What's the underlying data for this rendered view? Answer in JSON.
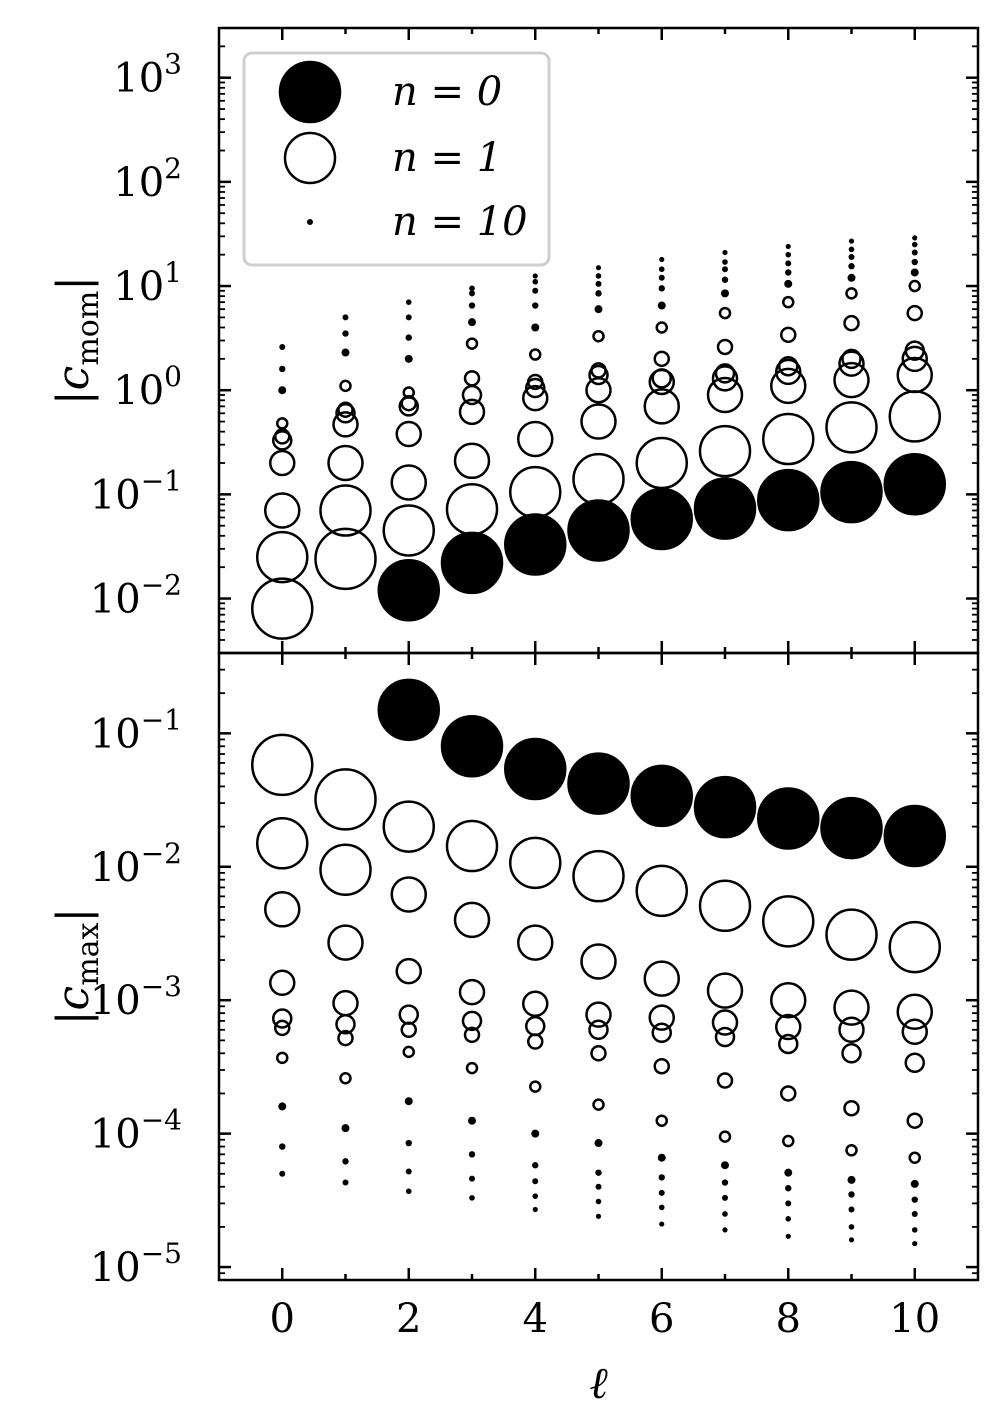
{
  "chart_data": [
    {
      "type": "scatter",
      "panel": "top",
      "ylabel_main": "c",
      "ylabel_sub": "mom",
      "yscale": "log",
      "ylim": [
        0.003,
        3000
      ],
      "xlim": [
        -1,
        11
      ],
      "ytick_base": "10",
      "yticks": [
        {
          "value": 0.01,
          "exp": "−2"
        },
        {
          "value": 0.1,
          "exp": "−1"
        },
        {
          "value": 1,
          "exp": "0"
        },
        {
          "value": 10,
          "exp": "1"
        },
        {
          "value": 100,
          "exp": "2"
        },
        {
          "value": 1000,
          "exp": "3"
        }
      ],
      "legend": {
        "position": "top-left",
        "entries": [
          {
            "label": "n = 0",
            "n": 0,
            "style": "filled"
          },
          {
            "label": "n = 1",
            "n": 1,
            "style": "open"
          },
          {
            "label": "n = 10",
            "n": 10,
            "style": "dot"
          }
        ]
      },
      "series": [
        {
          "x": 0,
          "values": [
            0.008,
            0.025,
            0.07,
            0.2,
            0.33,
            0.36,
            0.48,
            1.0,
            1.6,
            2.6
          ]
        },
        {
          "x": 1,
          "values": [
            0.024,
            0.07,
            0.2,
            0.47,
            0.6,
            0.65,
            1.1,
            2.3,
            3.5,
            5.0
          ]
        },
        {
          "x": 2,
          "values": [
            0.012,
            0.045,
            0.13,
            0.38,
            0.7,
            0.75,
            0.95,
            2.0,
            3.2,
            5.0,
            7.0
          ]
        },
        {
          "x": 3,
          "values": [
            0.022,
            0.072,
            0.21,
            0.62,
            0.9,
            1.3,
            2.8,
            4.5,
            6.5,
            8.5,
            9.5
          ]
        },
        {
          "x": 4,
          "values": [
            0.033,
            0.105,
            0.34,
            0.84,
            1.05,
            1.2,
            2.2,
            4.0,
            6.5,
            9.0,
            11.0,
            12.5
          ]
        },
        {
          "x": 5,
          "values": [
            0.045,
            0.14,
            0.5,
            1.0,
            1.4,
            1.55,
            3.3,
            6.0,
            8.5,
            10.5,
            12.5,
            15.0
          ]
        },
        {
          "x": 6,
          "values": [
            0.058,
            0.2,
            0.7,
            1.2,
            1.3,
            2.0,
            4.0,
            6.5,
            9.5,
            12.0,
            14.5,
            18.0
          ]
        },
        {
          "x": 7,
          "values": [
            0.073,
            0.26,
            0.9,
            1.3,
            1.45,
            2.6,
            5.5,
            8.5,
            11.5,
            14.5,
            17.0,
            21.0
          ]
        },
        {
          "x": 8,
          "values": [
            0.088,
            0.34,
            1.1,
            1.5,
            1.7,
            3.4,
            7.0,
            10.5,
            13.5,
            16.5,
            20.0,
            24.0
          ]
        },
        {
          "x": 9,
          "values": [
            0.105,
            0.44,
            1.25,
            1.8,
            2.0,
            4.4,
            8.5,
            12.0,
            15.5,
            19.0,
            22.5,
            27.0
          ]
        },
        {
          "x": 10,
          "values": [
            0.125,
            0.56,
            1.4,
            2.0,
            2.4,
            5.5,
            10.0,
            13.5,
            17.0,
            21.0,
            25.0,
            29.0
          ]
        }
      ]
    },
    {
      "type": "scatter",
      "panel": "bottom",
      "ylabel_main": "c",
      "ylabel_sub": "max",
      "xlabel": "ℓ",
      "yscale": "log",
      "ylim": [
        8e-06,
        0.4
      ],
      "xlim": [
        -1,
        11
      ],
      "ytick_base": "10",
      "yticks": [
        {
          "value": 1e-05,
          "exp": "−5"
        },
        {
          "value": 0.0001,
          "exp": "−4"
        },
        {
          "value": 0.001,
          "exp": "−3"
        },
        {
          "value": 0.01,
          "exp": "−2"
        },
        {
          "value": 0.1,
          "exp": "−1"
        }
      ],
      "xticks": [
        "0",
        "2",
        "4",
        "6",
        "8",
        "10"
      ],
      "series": [
        {
          "x": 0,
          "values": [
            0.058,
            0.015,
            0.0048,
            0.00135,
            0.00073,
            0.00062,
            0.00037,
            0.00016,
            8e-05,
            5e-05
          ]
        },
        {
          "x": 1,
          "values": [
            0.032,
            0.0095,
            0.0027,
            0.00095,
            0.00066,
            0.00052,
            0.00026,
            0.00011,
            6.2e-05,
            4.3e-05
          ]
        },
        {
          "x": 2,
          "values": [
            0.15,
            0.02,
            0.0062,
            0.00165,
            0.00078,
            0.0006,
            0.00041,
            0.000175,
            8.5e-05,
            5.2e-05,
            3.7e-05
          ]
        },
        {
          "x": 3,
          "values": [
            0.08,
            0.0143,
            0.004,
            0.00115,
            0.0007,
            0.00055,
            0.00031,
            0.000125,
            7e-05,
            4.6e-05,
            3.3e-05
          ]
        },
        {
          "x": 4,
          "values": [
            0.054,
            0.0107,
            0.0027,
            0.00094,
            0.00064,
            0.00049,
            0.000225,
            0.0001,
            5.8e-05,
            4.4e-05,
            3.4e-05,
            2.7e-05
          ]
        },
        {
          "x": 5,
          "values": [
            0.042,
            0.0085,
            0.00195,
            0.00078,
            0.0006,
            0.0004,
            0.000165,
            8.5e-05,
            5.1e-05,
            4e-05,
            3.1e-05,
            2.4e-05
          ]
        },
        {
          "x": 6,
          "values": [
            0.034,
            0.0066,
            0.00145,
            0.00074,
            0.00057,
            0.00032,
            0.000125,
            6.6e-05,
            4.7e-05,
            3.6e-05,
            2.8e-05,
            2.1e-05
          ]
        },
        {
          "x": 7,
          "values": [
            0.028,
            0.0051,
            0.00118,
            0.00068,
            0.00053,
            0.00025,
            9.5e-05,
            5.8e-05,
            4.3e-05,
            3.3e-05,
            2.5e-05,
            1.9e-05
          ]
        },
        {
          "x": 8,
          "values": [
            0.023,
            0.0039,
            0.001,
            0.00063,
            0.00047,
            0.0002,
            8.8e-05,
            5.1e-05,
            3.9e-05,
            3e-05,
            2.3e-05,
            1.7e-05
          ]
        },
        {
          "x": 9,
          "values": [
            0.0195,
            0.0031,
            0.00088,
            0.0006,
            0.0004,
            0.000155,
            7.5e-05,
            4.5e-05,
            3.5e-05,
            2.7e-05,
            2e-05,
            1.6e-05
          ]
        },
        {
          "x": 10,
          "values": [
            0.017,
            0.0025,
            0.00082,
            0.00058,
            0.00034,
            0.000125,
            6.6e-05,
            4.2e-05,
            3.2e-05,
            2.5e-05,
            1.9e-05,
            1.5e-05
          ]
        }
      ]
    }
  ]
}
